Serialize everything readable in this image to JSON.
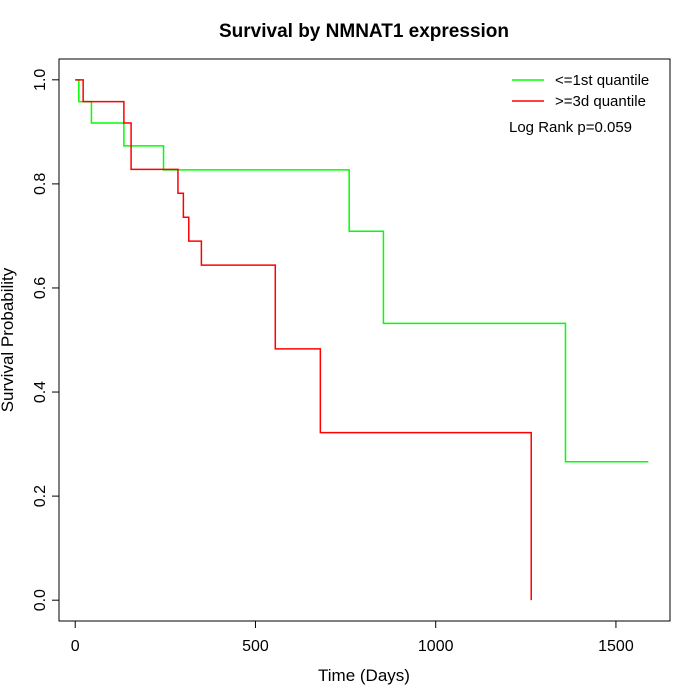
{
  "chart_data": {
    "type": "line",
    "title": "Survival by NMNAT1 expression",
    "xlabel": "Time (Days)",
    "ylabel": "Survival Probability",
    "xlim": [
      -45,
      1650
    ],
    "ylim": [
      -0.04,
      1.04
    ],
    "xticks": [
      0,
      500,
      1000,
      1500
    ],
    "yticks": [
      0.0,
      0.2,
      0.4,
      0.6,
      0.8,
      1.0
    ],
    "xtick_labels": [
      "0",
      "500",
      "1000",
      "1500"
    ],
    "ytick_labels": [
      "0.0",
      "0.2",
      "0.4",
      "0.6",
      "0.8",
      "1.0"
    ],
    "grid": false,
    "legend_position": "top-right",
    "annotation": "Log Rank p=0.059",
    "series": [
      {
        "name": "<=1st quantile",
        "color": "#00ff00",
        "step": true,
        "x": [
          0,
          10,
          45,
          135,
          245,
          760,
          855,
          1360,
          1590
        ],
        "y": [
          1.0,
          0.958,
          0.917,
          0.873,
          0.827,
          0.709,
          0.532,
          0.266,
          0.266
        ]
      },
      {
        "name": ">=3d quantile",
        "color": "#ff0000",
        "step": true,
        "x": [
          0,
          22,
          135,
          155,
          285,
          300,
          315,
          350,
          555,
          680,
          1265
        ],
        "y": [
          1.0,
          0.958,
          0.917,
          0.828,
          0.782,
          0.736,
          0.69,
          0.644,
          0.483,
          0.322,
          0.0
        ]
      }
    ]
  }
}
